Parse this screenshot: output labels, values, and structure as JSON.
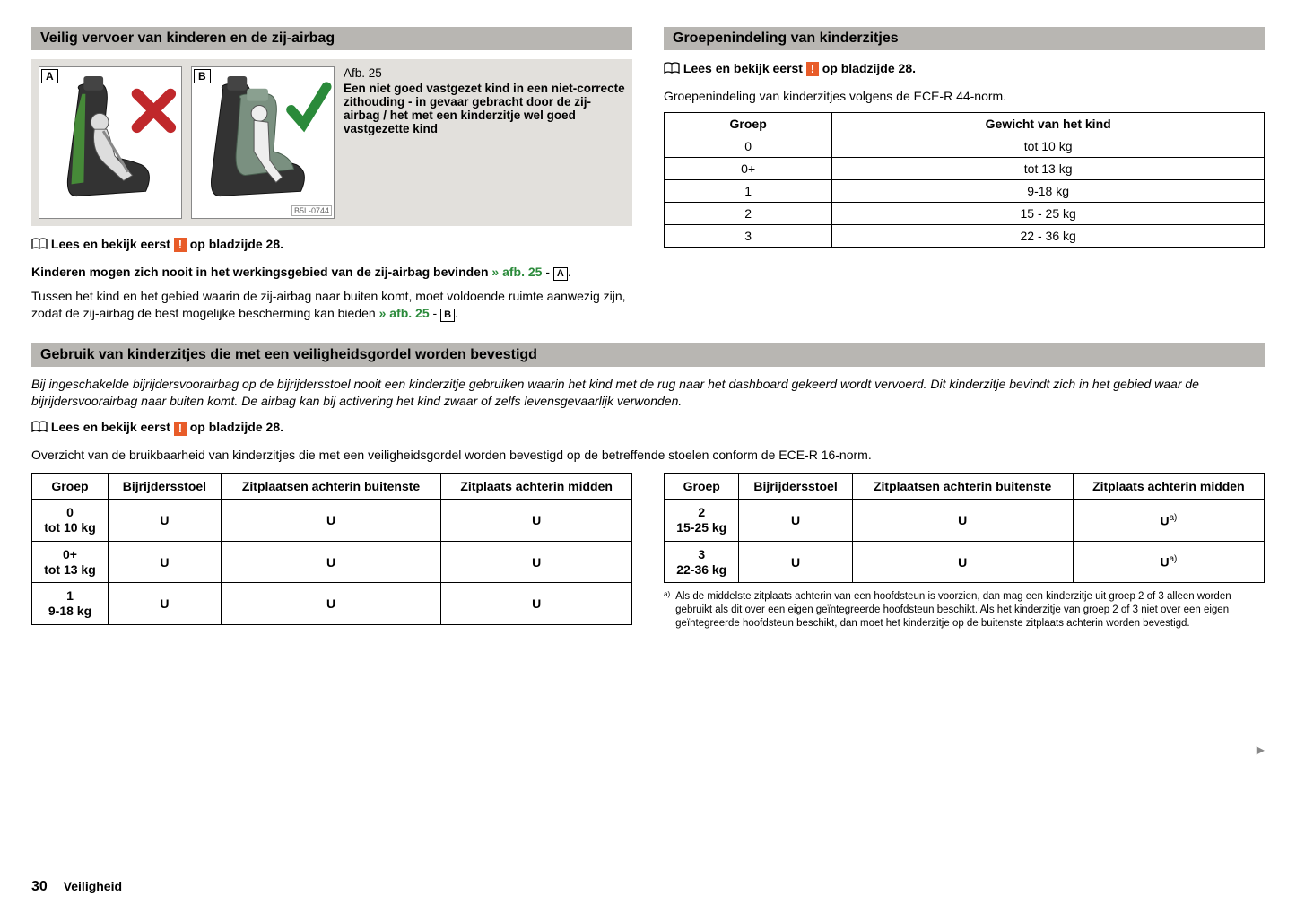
{
  "section1": {
    "title": "Veilig vervoer van kinderen en de zij-airbag",
    "figure": {
      "labelA": "A",
      "labelB": "B",
      "code": "B5L-0744",
      "number": "Afb. 25",
      "caption": "Een niet goed vastgezet kind in een niet-correcte zithouding - in gevaar gebracht door de zij-airbag / het met een kinderzitje wel goed vastgezette kind"
    },
    "readfirst_prefix": "Lees en bekijk eerst",
    "readfirst_suffix": "op bladzijde 28.",
    "para1_bold": "Kinderen mogen zich nooit in het werkingsgebied van de zij-airbag bevinden",
    "para1_ref": "» afb. 25",
    "para1_box": "A",
    "para2": "Tussen het kind en het gebied waarin de zij-airbag naar buiten komt, moet voldoende ruimte aanwezig zijn, zodat de zij-airbag de best mogelijke bescherming kan bieden",
    "para2_ref": "» afb. 25",
    "para2_box": "B"
  },
  "section2": {
    "title": "Groepenindeling van kinderzitjes",
    "readfirst_prefix": "Lees en bekijk eerst",
    "readfirst_suffix": "op bladzijde 28.",
    "intro": "Groepenindeling van kinderzitjes volgens de ECE-R 44-norm.",
    "table": {
      "headers": [
        "Groep",
        "Gewicht van het kind"
      ],
      "rows": [
        [
          "0",
          "tot 10 kg"
        ],
        [
          "0+",
          "tot 13 kg"
        ],
        [
          "1",
          "9-18 kg"
        ],
        [
          "2",
          "15 - 25 kg"
        ],
        [
          "3",
          "22 - 36 kg"
        ]
      ]
    }
  },
  "section3": {
    "title": "Gebruik van kinderzitjes die met een veiligheidsgordel worden bevestigd",
    "warning_italic": "Bij ingeschakelde bijrijdersvoorairbag op de bijrijdersstoel nooit een kinderzitje gebruiken waarin het kind met de rug naar het dashboard gekeerd wordt vervoerd. Dit kinderzitje bevindt zich in het gebied waar de bijrijdersvoorairbag naar buiten komt. De airbag kan bij activering het kind zwaar of zelfs levensgevaarlijk verwonden.",
    "readfirst_prefix": "Lees en bekijk eerst",
    "readfirst_suffix": "op bladzijde 28.",
    "intro": "Overzicht van de bruikbaarheid van kinderzitjes die met een veiligheidsgordel worden bevestigd op de betreffende stoelen conform de ECE-R 16-norm.",
    "table_headers": [
      "Groep",
      "Bijrijdersstoel",
      "Zitplaatsen achterin buitenste",
      "Zitplaats achterin midden"
    ],
    "table_left": [
      {
        "group": "0",
        "weight": "tot 10 kg",
        "c1": "U",
        "c2": "U",
        "c3": "U",
        "note": false
      },
      {
        "group": "0+",
        "weight": "tot 13 kg",
        "c1": "U",
        "c2": "U",
        "c3": "U",
        "note": false
      },
      {
        "group": "1",
        "weight": "9-18 kg",
        "c1": "U",
        "c2": "U",
        "c3": "U",
        "note": false
      }
    ],
    "table_right": [
      {
        "group": "2",
        "weight": "15-25 kg",
        "c1": "U",
        "c2": "U",
        "c3": "U",
        "note": true
      },
      {
        "group": "3",
        "weight": "22-36 kg",
        "c1": "U",
        "c2": "U",
        "c3": "U",
        "note": true
      }
    ],
    "footnote_marker": "a)",
    "footnote": "Als de middelste zitplaats achterin van een hoofdsteun is voorzien, dan mag een kinderzitje uit groep 2 of 3 alleen worden gebruikt als dit over een eigen geïntegreerde hoofdsteun beschikt. Als het kinderzitje van groep 2 of 3 niet over een eigen geïntegreerde hoofdsteun beschikt, dan moet het kinderzitje op de buitenste zitplaats achterin worden bevestigd."
  },
  "footer": {
    "page": "30",
    "section": "Veiligheid"
  },
  "colors": {
    "header_bg": "#b8b6b2",
    "figure_bg": "#e2e0dc",
    "warn_badge": "#e85c29",
    "ref_green": "#2a8a3a",
    "cross_red": "#c0282b",
    "check_green": "#2a8a3a"
  }
}
